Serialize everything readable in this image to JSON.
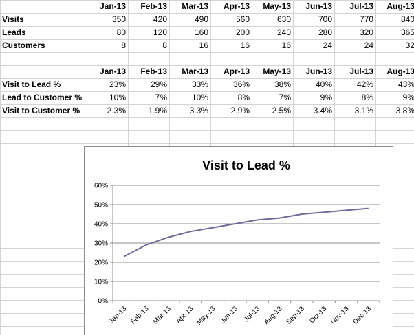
{
  "table1": {
    "months": [
      "Jan-13",
      "Feb-13",
      "Mar-13",
      "Apr-13",
      "May-13",
      "Jun-13",
      "Jul-13",
      "Aug-13"
    ],
    "rows": [
      {
        "label": "Visits",
        "values": [
          "350",
          "420",
          "490",
          "560",
          "630",
          "700",
          "770",
          "840"
        ]
      },
      {
        "label": "Leads",
        "values": [
          "80",
          "120",
          "160",
          "200",
          "240",
          "280",
          "320",
          "365"
        ]
      },
      {
        "label": "Customers",
        "values": [
          "8",
          "8",
          "16",
          "16",
          "16",
          "24",
          "24",
          "32"
        ]
      }
    ]
  },
  "table2": {
    "months": [
      "Jan-13",
      "Feb-13",
      "Mar-13",
      "Apr-13",
      "May-13",
      "Jun-13",
      "Jul-13",
      "Aug-13"
    ],
    "rows": [
      {
        "label": "Visit to Lead %",
        "values": [
          "23%",
          "29%",
          "33%",
          "36%",
          "38%",
          "40%",
          "42%",
          "43%"
        ]
      },
      {
        "label": "Lead to Customer %",
        "values": [
          "10%",
          "7%",
          "10%",
          "8%",
          "7%",
          "9%",
          "8%",
          "9%"
        ]
      },
      {
        "label": "Visit to Customer %",
        "values": [
          "2.3%",
          "1.9%",
          "3.3%",
          "2.9%",
          "2.5%",
          "3.4%",
          "3.1%",
          "3.8%"
        ]
      }
    ]
  },
  "chart_data": {
    "type": "line",
    "title": "Visit to Lead %",
    "xlabel": "",
    "ylabel": "",
    "categories": [
      "Jan-13",
      "Feb-13",
      "Mar-13",
      "Apr-13",
      "May-13",
      "Jun-13",
      "Jul-13",
      "Aug-13",
      "Sep-13",
      "Oct-13",
      "Nov-13",
      "Dec-13"
    ],
    "series": [
      {
        "values": [
          23,
          29,
          33,
          36,
          38,
          40,
          42,
          43,
          45,
          46,
          47,
          48
        ],
        "color": "#6f6a96"
      }
    ],
    "ylim": [
      0,
      60
    ],
    "yticks": [
      "0%",
      "10%",
      "20%",
      "30%",
      "40%",
      "50%",
      "60%"
    ],
    "grid": true,
    "legend": "none"
  }
}
